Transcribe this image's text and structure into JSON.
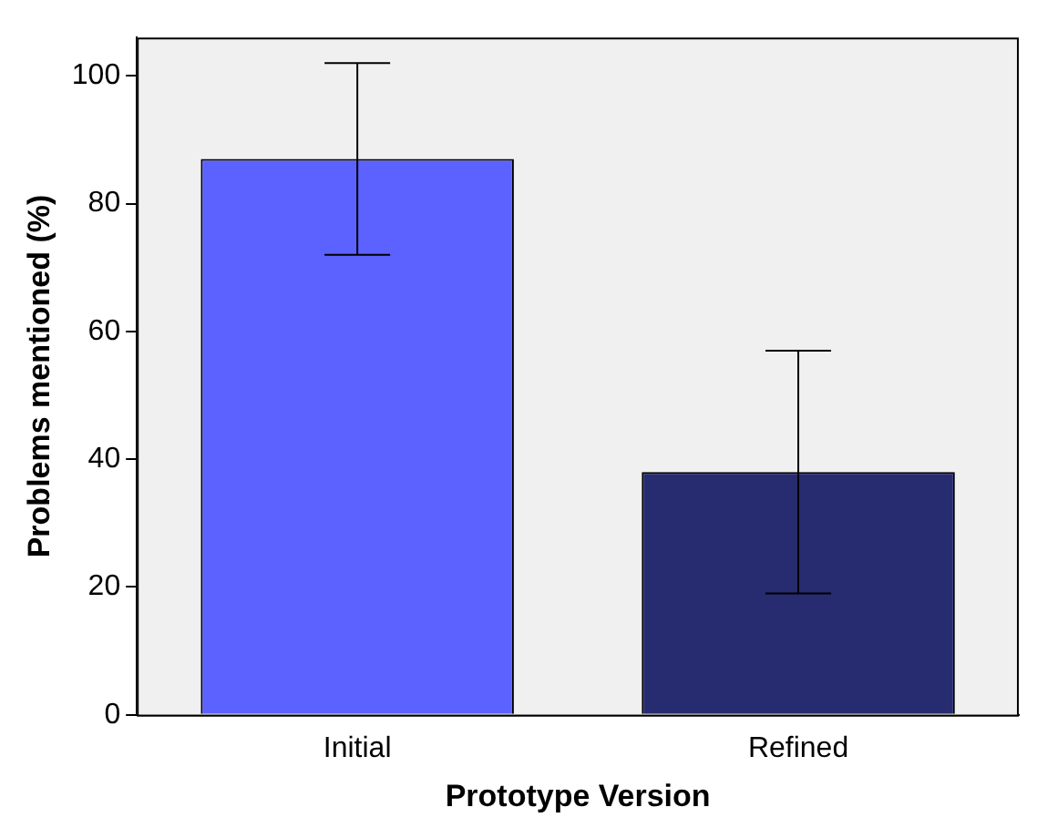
{
  "chart_data": {
    "type": "bar",
    "xlabel": "Prototype Version",
    "ylabel": "Problems mentioned (%)",
    "categories": [
      "Initial",
      "Refined"
    ],
    "values": [
      87,
      38
    ],
    "colors": [
      "#5c62ff",
      "#272b70"
    ],
    "errors": [
      [
        72,
        102
      ],
      [
        19,
        57
      ]
    ],
    "ylim": [
      0,
      106
    ],
    "yticks": [
      0,
      20,
      40,
      60,
      80,
      100
    ],
    "grid": false,
    "legend": false
  }
}
